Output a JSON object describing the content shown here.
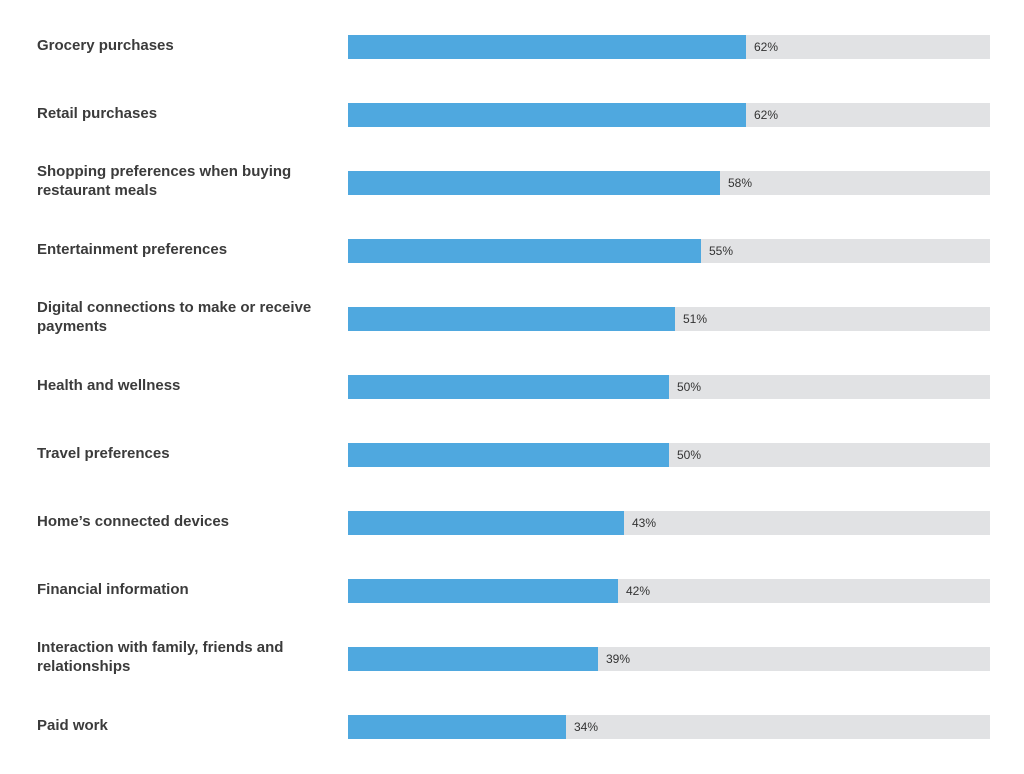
{
  "chart_data": {
    "type": "bar",
    "orientation": "horizontal",
    "categories": [
      "Grocery purchases",
      "Retail purchases",
      "Shopping preferences when buying restaurant meals",
      "Entertainment preferences",
      "Digital connections to make or receive payments",
      "Health and wellness",
      "Travel preferences",
      "Home’s connected devices",
      "Financial information",
      "Interaction with family, friends and relationships",
      "Paid work"
    ],
    "values": [
      62,
      62,
      58,
      55,
      51,
      50,
      50,
      43,
      42,
      39,
      34
    ],
    "value_labels": [
      "62%",
      "62%",
      "58%",
      "55%",
      "51%",
      "50%",
      "50%",
      "43%",
      "42%",
      "39%",
      "34%"
    ],
    "xlim": [
      0,
      100
    ],
    "grid": false,
    "colors": {
      "bar": "#4fa8df",
      "track": "#e1e2e4",
      "label": "#3b3b3b"
    }
  }
}
